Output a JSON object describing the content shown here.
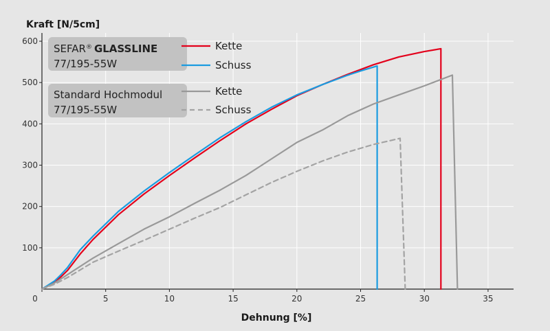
{
  "chart_data": {
    "type": "line",
    "ylabel": "Kraft [N/5cm]",
    "xlabel": "Dehnung [%]",
    "xlim": [
      0,
      37
    ],
    "ylim": [
      0,
      620
    ],
    "xticks": [
      0,
      5,
      10,
      15,
      20,
      25,
      30,
      35
    ],
    "yticks": [
      100,
      200,
      300,
      400,
      500,
      600
    ],
    "grid": true,
    "legend_position": "top-left",
    "legend_groups": [
      {
        "brand": "SEFAR",
        "registered": "®",
        "name": "GLASSLINE",
        "spec": "77/195-55W",
        "series_labels": [
          "Kette",
          "Schuss"
        ]
      },
      {
        "name": "Standard Hochmodul",
        "spec": "77/195-55W",
        "series_labels": [
          "Kette",
          "Schuss"
        ]
      }
    ],
    "series": [
      {
        "name": "Kette",
        "group": "SEFAR GLASSLINE 77/195-55W",
        "color": "#e3001b",
        "dash": "solid",
        "x": [
          0,
          1,
          1.5,
          2,
          3,
          4,
          6,
          8,
          10,
          12,
          14,
          16,
          18,
          20,
          22,
          24,
          26,
          28,
          30,
          31.3,
          31.3
        ],
        "y": [
          0,
          18,
          30,
          45,
          85,
          120,
          180,
          230,
          275,
          318,
          360,
          400,
          435,
          468,
          495,
          520,
          543,
          562,
          575,
          582,
          0
        ]
      },
      {
        "name": "Schuss",
        "group": "SEFAR GLASSLINE 77/195-55W",
        "color": "#1a9be0",
        "dash": "solid",
        "x": [
          0,
          1,
          1.5,
          2,
          3,
          4,
          6,
          8,
          10,
          12,
          14,
          16,
          18,
          20,
          22,
          24,
          25,
          26.3,
          26.3
        ],
        "y": [
          0,
          20,
          35,
          52,
          95,
          128,
          188,
          237,
          282,
          325,
          367,
          405,
          440,
          470,
          495,
          518,
          528,
          540,
          0
        ]
      },
      {
        "name": "Kette",
        "group": "Standard Hochmodul 77/195-55W",
        "color": "#999999",
        "dash": "solid",
        "x": [
          0,
          1,
          2,
          4,
          6,
          8,
          10,
          12,
          14,
          16,
          18,
          20,
          22,
          24,
          26,
          28,
          30,
          32.2,
          32.6
        ],
        "y": [
          0,
          15,
          35,
          75,
          110,
          145,
          175,
          208,
          240,
          275,
          315,
          355,
          385,
          420,
          448,
          470,
          492,
          518,
          0
        ]
      },
      {
        "name": "Schuss",
        "group": "Standard Hochmodul 77/195-55W",
        "color": "#a3a3a3",
        "dash": "dashed",
        "x": [
          0,
          1,
          2,
          4,
          6,
          8,
          10,
          12,
          14,
          16,
          18,
          20,
          22,
          24,
          26,
          28.1,
          28.5
        ],
        "y": [
          0,
          12,
          28,
          65,
          92,
          118,
          145,
          172,
          198,
          228,
          258,
          285,
          310,
          332,
          350,
          365,
          0
        ]
      }
    ]
  }
}
